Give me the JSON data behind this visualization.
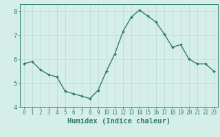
{
  "x": [
    0,
    1,
    2,
    3,
    4,
    5,
    6,
    7,
    8,
    9,
    10,
    11,
    12,
    13,
    14,
    15,
    16,
    17,
    18,
    19,
    20,
    21,
    22,
    23
  ],
  "y": [
    5.8,
    5.9,
    5.55,
    5.35,
    5.25,
    4.65,
    4.55,
    4.45,
    4.35,
    4.7,
    5.5,
    6.2,
    7.15,
    7.75,
    8.05,
    7.8,
    7.55,
    7.05,
    6.5,
    6.6,
    6.0,
    5.8,
    5.8,
    5.5
  ],
  "line_color": "#2e7d6e",
  "marker": "D",
  "marker_size": 2.0,
  "background_color": "#d6eee8",
  "grid_color": "#b8d8d0",
  "xlabel": "Humidex (Indice chaleur)",
  "xlim": [
    -0.5,
    23.5
  ],
  "ylim": [
    4.0,
    8.3
  ],
  "yticks": [
    4,
    5,
    6,
    7,
    8
  ],
  "xticks": [
    0,
    1,
    2,
    3,
    4,
    5,
    6,
    7,
    8,
    9,
    10,
    11,
    12,
    13,
    14,
    15,
    16,
    17,
    18,
    19,
    20,
    21,
    22,
    23
  ],
  "tick_color": "#2e7d6e",
  "spine_color": "#2e7d6e",
  "label_color": "#2e7d6e",
  "label_fontsize": 7.5,
  "tick_fontsize": 5.5,
  "line_width": 1.0
}
